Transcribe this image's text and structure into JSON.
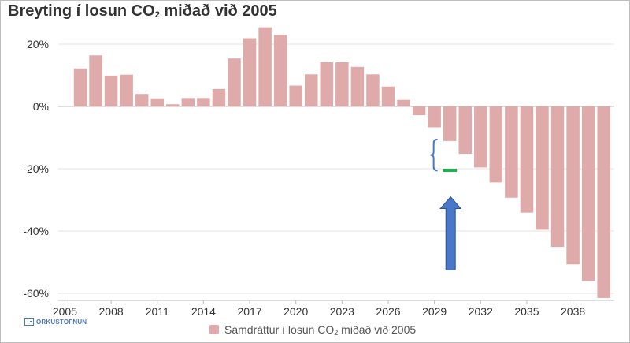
{
  "colors": {
    "bar": "#dfaaaa",
    "grid": "#e3e3e3",
    "zero_line": "#bdbdbd",
    "axis_text": "#333333",
    "bracket": "#4a78c8",
    "target_mark": "#1fae4f",
    "arrow_fill": "#4a78c8",
    "arrow_stroke": "#2f4f8f"
  },
  "chart_data": {
    "type": "bar",
    "title_prefix": "Breyting í losun CO",
    "title_sub": "2",
    "title_suffix": " miðað við 2005",
    "xlabel": "",
    "ylabel": "",
    "ylim": [
      -63,
      27
    ],
    "grid": true,
    "legend_position": "bottom-center",
    "y_ticks": [
      20,
      0,
      -20,
      -40,
      -60
    ],
    "y_tick_labels": [
      "20%",
      "0%",
      "-20%",
      "-40%",
      "-60%"
    ],
    "x_tick_labels": [
      "2005",
      "2008",
      "2011",
      "2014",
      "2017",
      "2020",
      "2023",
      "2026",
      "2029",
      "2032",
      "2035",
      "2038"
    ],
    "categories": [
      2006,
      2007,
      2008,
      2009,
      2010,
      2011,
      2012,
      2013,
      2014,
      2015,
      2016,
      2017,
      2018,
      2019,
      2020,
      2021,
      2022,
      2023,
      2024,
      2025,
      2026,
      2027,
      2028,
      2029,
      2030,
      2031,
      2032,
      2033,
      2034,
      2035,
      2036,
      2037,
      2038,
      2039,
      2040
    ],
    "series": [
      {
        "name_prefix": "Samdráttur í losun CO",
        "name_sub": "2",
        "name_suffix": " miðað við 2005",
        "values": [
          12.2,
          16.4,
          9.9,
          10.2,
          4.0,
          2.6,
          0.7,
          2.7,
          2.7,
          5.6,
          15.4,
          21.9,
          25.4,
          23.0,
          6.7,
          10.3,
          14.2,
          14.2,
          12.7,
          10.3,
          6.4,
          2.1,
          -2.8,
          -6.7,
          -11.1,
          -15.2,
          -19.6,
          -24.4,
          -29.3,
          -34.1,
          -39.6,
          -45.1,
          -50.7,
          -56.1,
          -61.5
        ]
      }
    ],
    "annotations": {
      "bracket_year": 2029,
      "bracket_top": -10.6,
      "bracket_bottom": -20.6,
      "target_year": 2030,
      "target_value": -20.5,
      "arrow_year": 2030,
      "arrow_tip": -29,
      "arrow_base": -52.5
    }
  },
  "logo": {
    "text": "ORKUSTOFNUN"
  }
}
